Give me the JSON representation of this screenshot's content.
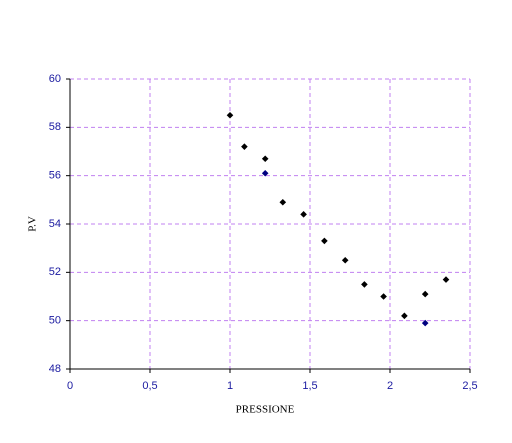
{
  "chart_data": {
    "type": "scatter",
    "xlabel": "PRESSIONE",
    "ylabel": "P.V",
    "xlim": [
      0,
      2.5
    ],
    "ylim": [
      48,
      60
    ],
    "xticks": [
      0,
      {
        "value": 0.5,
        "label": "0,5"
      },
      1,
      {
        "value": 1.5,
        "label": "1,5"
      },
      2,
      {
        "value": 2.5,
        "label": "2,5"
      }
    ],
    "yticks": [
      48,
      50,
      52,
      54,
      56,
      58,
      60
    ],
    "grid": true,
    "series": [
      {
        "color": "#000000",
        "x": [
          1.0,
          1.09,
          1.22,
          1.33,
          1.46,
          1.59,
          1.72,
          1.84,
          1.96,
          2.09,
          2.22,
          2.35
        ],
        "values": [
          58.5,
          57.2,
          56.7,
          54.9,
          54.4,
          53.3,
          52.5,
          51.5,
          51.0,
          50.2,
          51.1,
          51.7
        ]
      },
      {
        "color": "#000080",
        "x": [
          1.22,
          2.22
        ],
        "values": [
          56.1,
          49.9
        ]
      }
    ]
  }
}
